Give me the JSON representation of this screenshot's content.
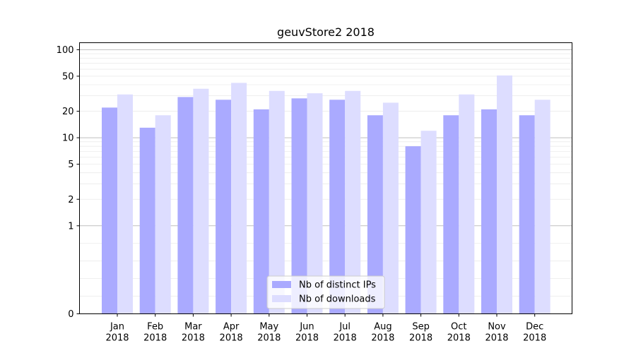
{
  "chart_data": {
    "type": "bar",
    "title": "geuvStore2 2018",
    "xlabel": "",
    "ylabel": "",
    "yscale": "symlog",
    "ylim": [
      0,
      120
    ],
    "yticks": [
      0,
      1,
      2,
      5,
      10,
      20,
      50,
      100
    ],
    "categories": [
      [
        "Jan",
        "2018"
      ],
      [
        "Feb",
        "2018"
      ],
      [
        "Mar",
        "2018"
      ],
      [
        "Apr",
        "2018"
      ],
      [
        "May",
        "2018"
      ],
      [
        "Jun",
        "2018"
      ],
      [
        "Jul",
        "2018"
      ],
      [
        "Aug",
        "2018"
      ],
      [
        "Sep",
        "2018"
      ],
      [
        "Oct",
        "2018"
      ],
      [
        "Nov",
        "2018"
      ],
      [
        "Dec",
        "2018"
      ]
    ],
    "series": [
      {
        "name": "Nb of distinct IPs",
        "color": "#aaaaff",
        "values": [
          22,
          13,
          29,
          27,
          21,
          28,
          27,
          18,
          8,
          18,
          21,
          18
        ]
      },
      {
        "name": "Nb of downloads",
        "color": "#ddddff",
        "values": [
          31,
          18,
          36,
          42,
          34,
          32,
          34,
          25,
          12,
          31,
          51,
          27
        ]
      }
    ],
    "grid": true,
    "legend_position": "bottom-center"
  }
}
